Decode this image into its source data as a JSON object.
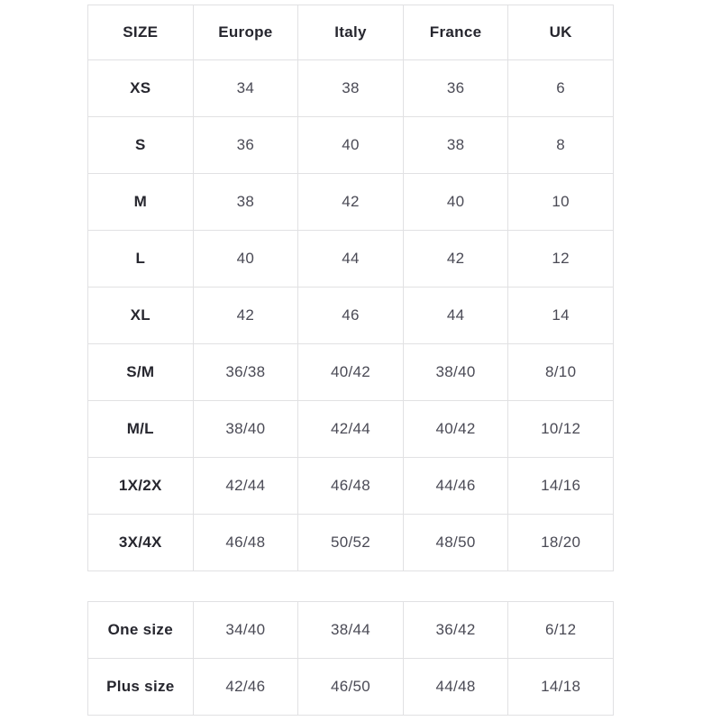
{
  "colors": {
    "background": "#ffffff",
    "border": "#e1e1e3",
    "header_text": "#26262e",
    "cell_text": "#4a4a55"
  },
  "table_main": {
    "columns": [
      "SIZE",
      "Europe",
      "Italy",
      "France",
      "UK"
    ],
    "rows": [
      {
        "size": "XS",
        "values": [
          "34",
          "38",
          "36",
          "6"
        ]
      },
      {
        "size": "S",
        "values": [
          "36",
          "40",
          "38",
          "8"
        ]
      },
      {
        "size": "M",
        "values": [
          "38",
          "42",
          "40",
          "10"
        ]
      },
      {
        "size": "L",
        "values": [
          "40",
          "44",
          "42",
          "12"
        ]
      },
      {
        "size": "XL",
        "values": [
          "42",
          "46",
          "44",
          "14"
        ]
      },
      {
        "size": "S/M",
        "values": [
          "36/38",
          "40/42",
          "38/40",
          "8/10"
        ]
      },
      {
        "size": "M/L",
        "values": [
          "38/40",
          "42/44",
          "40/42",
          "10/12"
        ]
      },
      {
        "size": "1X/2X",
        "values": [
          "42/44",
          "46/48",
          "44/46",
          "14/16"
        ]
      },
      {
        "size": "3X/4X",
        "values": [
          "46/48",
          "50/52",
          "48/50",
          "18/20"
        ]
      }
    ]
  },
  "table_extra": {
    "rows": [
      {
        "size": "One size",
        "values": [
          "34/40",
          "38/44",
          "36/42",
          "6/12"
        ]
      },
      {
        "size": "Plus size",
        "values": [
          "42/46",
          "46/50",
          "44/48",
          "14/18"
        ]
      }
    ]
  }
}
